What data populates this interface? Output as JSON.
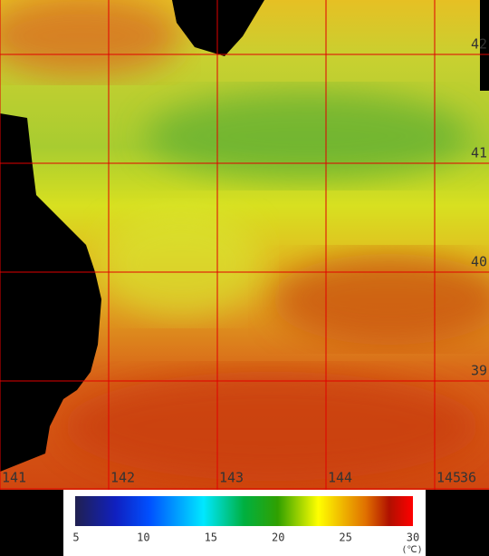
{
  "map": {
    "lon_labels": [
      141,
      142,
      143,
      144,
      145
    ],
    "lat_labels": [
      42,
      41,
      40,
      39
    ],
    "xlim": [
      141,
      145.5
    ],
    "ylim": [
      42.5,
      38
    ],
    "day_label": "36",
    "colorbar": {
      "ticks": [
        5,
        10,
        15,
        20,
        25,
        30
      ],
      "lim": [
        5,
        30
      ],
      "unit": "(℃)"
    }
  }
}
